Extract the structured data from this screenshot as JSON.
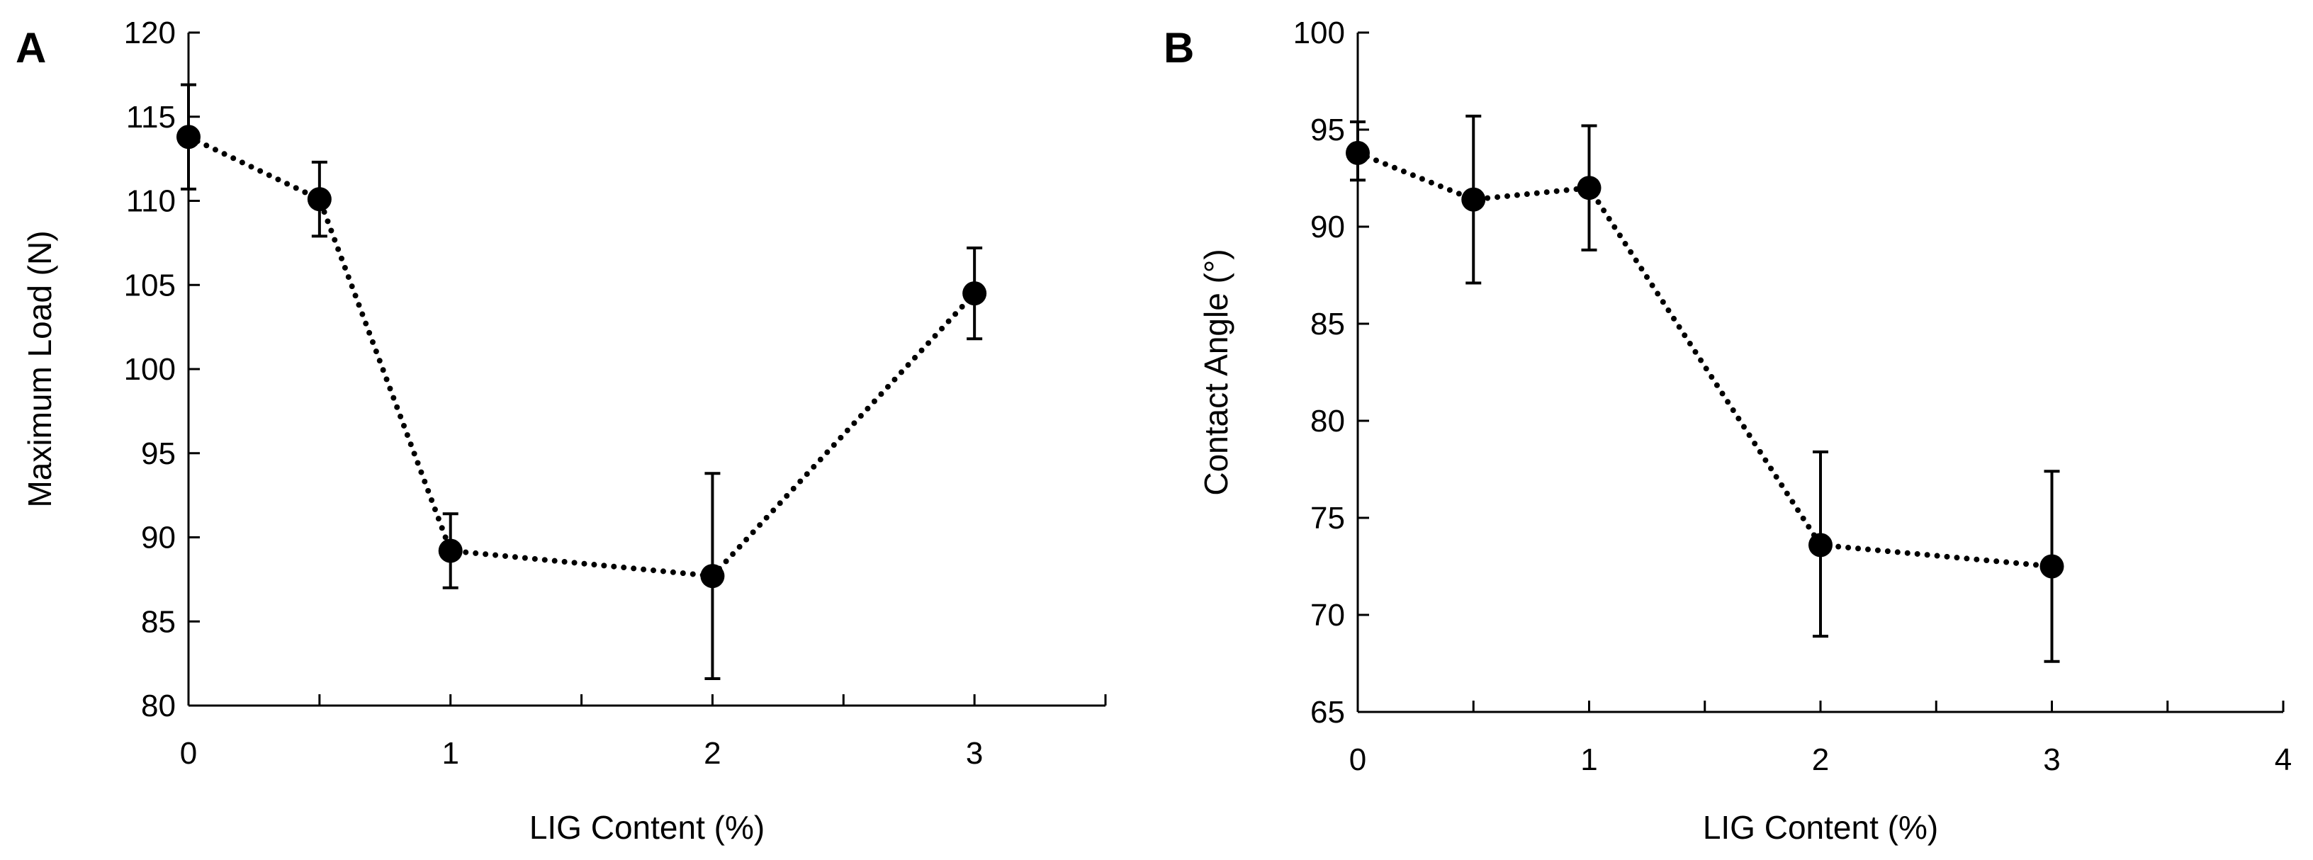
{
  "chart_data": [
    {
      "type": "line",
      "panel_label": "A",
      "title": "",
      "xlabel": "LIG Content (%)",
      "ylabel": "Maximum Load (N)",
      "xlim": [
        0,
        3.5
      ],
      "ylim": [
        80,
        120
      ],
      "xticks": [
        0,
        1,
        2,
        3
      ],
      "xtick_labels": [
        "0",
        "1",
        "2",
        "3"
      ],
      "xminor": [
        0.5,
        1.5,
        2.5,
        3.5
      ],
      "yticks": [
        80,
        85,
        90,
        95,
        100,
        105,
        110,
        115,
        120
      ],
      "ytick_labels": [
        "80",
        "85",
        "90",
        "95",
        "100",
        "105",
        "110",
        "115",
        "120"
      ],
      "grid": false,
      "line_style": "dotted",
      "marker": "filled-circle",
      "color": "#000000",
      "series": [
        {
          "name": "Maximum Load",
          "x": [
            0,
            0.5,
            1,
            2,
            3
          ],
          "y": [
            113.8,
            110.1,
            89.2,
            87.7,
            104.5
          ],
          "err_low": [
            110.7,
            107.9,
            87.0,
            81.6,
            101.8
          ],
          "err_high": [
            116.9,
            112.3,
            91.4,
            93.8,
            107.2
          ]
        }
      ]
    },
    {
      "type": "line",
      "panel_label": "B",
      "title": "",
      "xlabel": "LIG Content (%)",
      "ylabel": "Contact Angle (°)",
      "xlim": [
        0,
        4
      ],
      "ylim": [
        65,
        100
      ],
      "xticks": [
        0,
        1,
        2,
        3,
        4
      ],
      "xtick_labels": [
        "0",
        "1",
        "2",
        "3",
        "4"
      ],
      "xminor": [
        0.5,
        1.5,
        2.5,
        3.5
      ],
      "yticks": [
        65,
        70,
        75,
        80,
        85,
        90,
        95,
        100
      ],
      "ytick_labels": [
        "65",
        "70",
        "75",
        "80",
        "85",
        "90",
        "95",
        "100"
      ],
      "grid": false,
      "line_style": "dotted",
      "marker": "filled-circle",
      "color": "#000000",
      "series": [
        {
          "name": "Contact Angle",
          "x": [
            0,
            0.5,
            1,
            2,
            3
          ],
          "y": [
            93.8,
            91.4,
            92.0,
            73.6,
            72.5
          ],
          "err_low": [
            92.4,
            87.1,
            88.8,
            68.9,
            67.6
          ],
          "err_high": [
            95.4,
            95.7,
            95.2,
            78.4,
            77.4
          ]
        }
      ]
    }
  ]
}
